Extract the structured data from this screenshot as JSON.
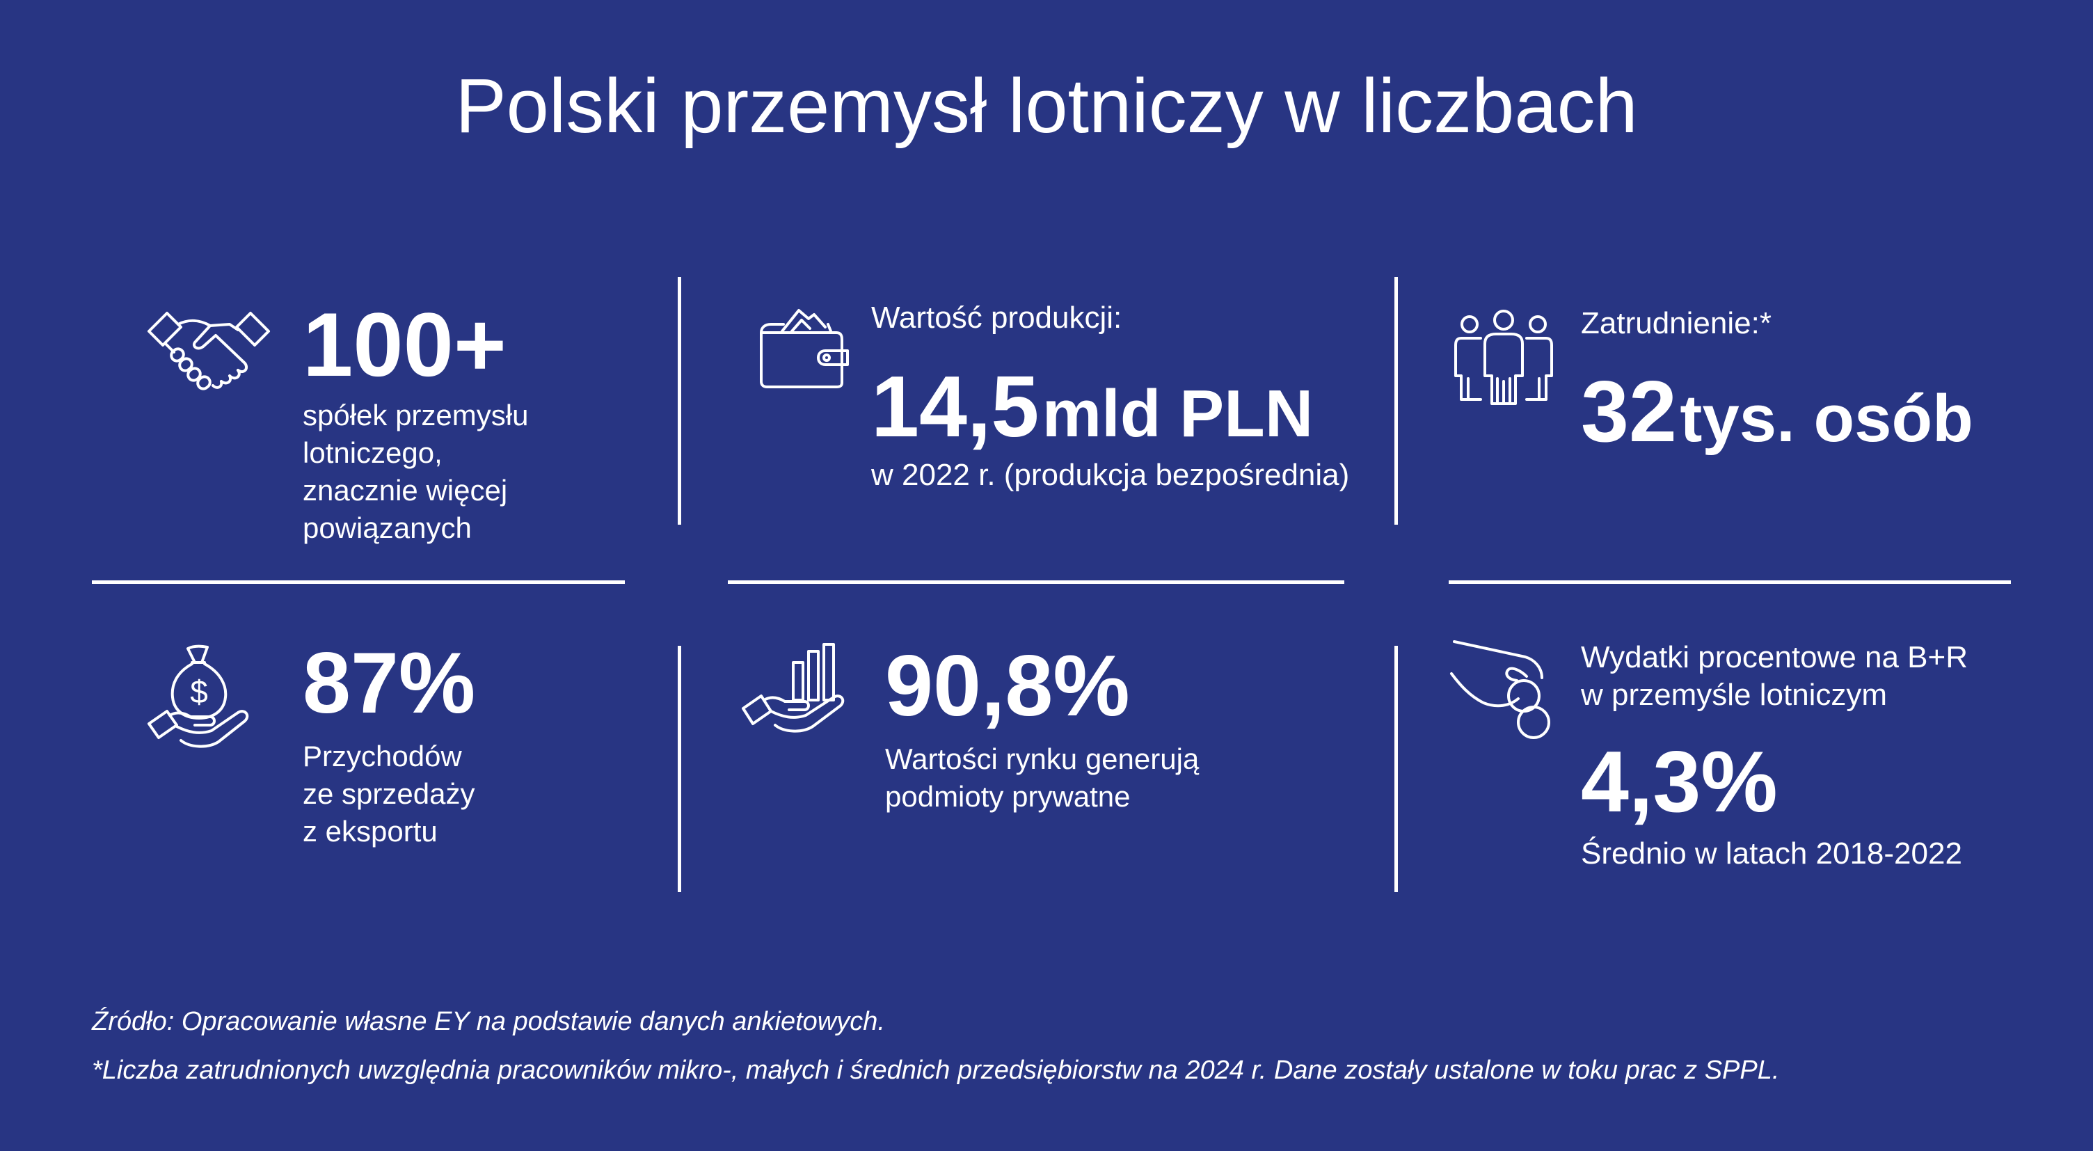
{
  "title": "Polski przemysł lotniczy w liczbach",
  "background_color": "#283583",
  "text_color": "#ffffff",
  "stats": {
    "companies": {
      "icon": "handshake-icon",
      "value": "100+",
      "description": [
        "spółek przemysłu",
        "lotniczego,",
        "znacznie więcej",
        "powiązanych"
      ]
    },
    "production": {
      "icon": "wallet-icon",
      "label": "Wartość produkcji:",
      "value_number": "14,5",
      "value_unit": "mld PLN",
      "description": "w 2022 r. (produkcja bezpośrednia)"
    },
    "employment": {
      "icon": "people-icon",
      "label": "Zatrudnienie:*",
      "value_number": "32",
      "value_unit": "tys. osób"
    },
    "export": {
      "icon": "money-bag-hand-icon",
      "value": "87%",
      "description": [
        "Przychodów",
        "ze sprzedaży",
        "z eksportu"
      ]
    },
    "private": {
      "icon": "growth-chart-hand-icon",
      "value": "90,8%",
      "description": [
        "Wartości rynku generują",
        "podmioty prywatne"
      ]
    },
    "rnd": {
      "icon": "coin-hand-icon",
      "label": [
        "Wydatki procentowe na B+R",
        "w przemyśle lotniczym"
      ],
      "value": "4,3%",
      "description": "Średnio w latach 2018-2022"
    }
  },
  "footnotes": {
    "source": "Źródło: Opracowanie własne EY na podstawie danych ankietowych.",
    "note": "*Liczba zatrudnionych uwzględnia pracowników mikro-, małych i średnich przedsiębiorstw na 2024 r. Dane zostały ustalone w toku prac z SPPL."
  }
}
